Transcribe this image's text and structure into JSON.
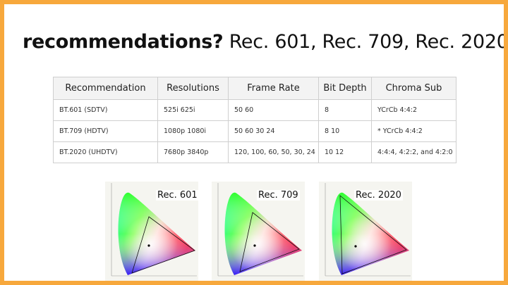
{
  "title": {
    "bold": "recommendations?",
    "rest": " Rec. 601, Rec. 709, Rec. 2020"
  },
  "table": {
    "headers": [
      "Recommendation",
      "Resolutions",
      "Frame Rate",
      "Bit Depth",
      "Chroma Sub"
    ],
    "rows": [
      [
        "BT.601 (SDTV)",
        "525i 625i",
        "50 60",
        "8",
        "YCrCb 4:4:2"
      ],
      [
        "BT.709 (HDTV)",
        "1080p 1080i",
        "50 60 30 24",
        "8 10",
        "* YCrCb 4:4:2"
      ],
      [
        "BT.2020 (UHDTV)",
        "7680p 3840p",
        "120, 100, 60, 50, 30, 24",
        "10 12",
        "4:4:4, 4:2:2, and 4:2:0"
      ]
    ]
  },
  "charts": [
    {
      "label": "Rec. 601"
    },
    {
      "label": "Rec. 709"
    },
    {
      "label": "Rec. 2020"
    }
  ],
  "colors": {
    "border": "#f7a83c"
  }
}
